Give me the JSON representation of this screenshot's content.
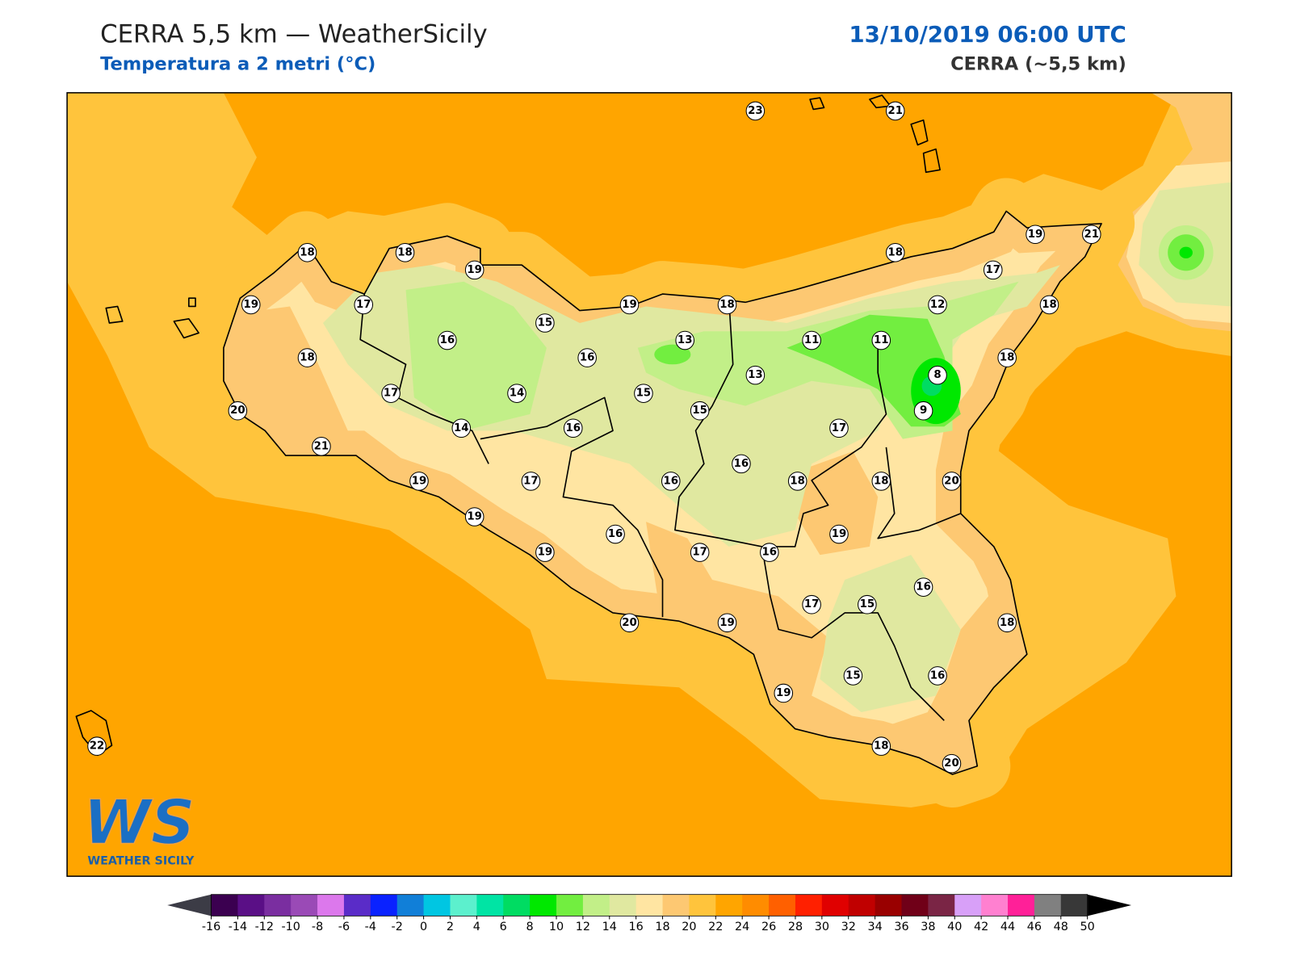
{
  "header": {
    "title": "CERRA 5,5 km — WeatherSicily",
    "subtitle": "Temperatura a 2 metri (°C)",
    "datetime": "13/10/2019 06:00 UTC",
    "model": "CERRA (~5,5 km)"
  },
  "map": {
    "stations": [
      23,
      21,
      18,
      18,
      19,
      19,
      21,
      18,
      17,
      19,
      17,
      19,
      18,
      12,
      18,
      15,
      16,
      13,
      11,
      11,
      18,
      16,
      18,
      13,
      8,
      17,
      14,
      15,
      15,
      9,
      20,
      14,
      16,
      17,
      21,
      16,
      19,
      17,
      16,
      18,
      18,
      20,
      19,
      19,
      16,
      19,
      17,
      16,
      16,
      17,
      15,
      20,
      19,
      18,
      15,
      16,
      19,
      18,
      20,
      22
    ]
  },
  "legend": {
    "ticks": [
      -16,
      -14,
      -12,
      -10,
      -8,
      -6,
      -4,
      -2,
      0,
      2,
      4,
      6,
      8,
      10,
      12,
      14,
      16,
      18,
      20,
      22,
      24,
      26,
      28,
      30,
      32,
      34,
      36,
      38,
      40,
      42,
      44,
      46,
      48,
      50
    ],
    "colors": [
      "#3b0050",
      "#5a0f86",
      "#7a2ea0",
      "#9a4ab6",
      "#dc78ec",
      "#5a2cc8",
      "#0a22ff",
      "#117fd8",
      "#00c6e2",
      "#5cf0cd",
      "#00e4a4",
      "#00dc62",
      "#00e800",
      "#72ee40",
      "#c2ef88",
      "#e0e8a0",
      "#ffe5a2",
      "#fdc872",
      "#ffc43c",
      "#ffa500",
      "#ff8c00",
      "#ff6000",
      "#ff2000",
      "#e00000",
      "#c00000",
      "#990000",
      "#700018",
      "#7a2545",
      "#d8a0f8",
      "#ff80d0",
      "#ff2098",
      "#808080",
      "#383838"
    ],
    "under_color": "#3c3c46",
    "over_color": "#000000"
  },
  "logo": {
    "mark": "WS",
    "name": "WEATHER SICILY"
  }
}
